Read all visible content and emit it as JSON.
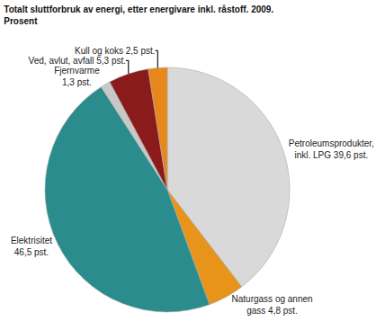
{
  "chart_data": {
    "type": "pie",
    "title": "Totalt sluttforbruk av energi, etter energivare inkl. råstoff. 2009.",
    "subtitle": "Prosent",
    "categories": [
      "Petroleumsprodukter,\ninkl. LPG 39,6 pst.",
      "Naturgass og annen\ngass 4,8 pst.",
      "Elektrisitet\n46,5 pst.",
      "Fjernvarme\n1,3 pst.",
      "Ved, avlut, avfall 5,3 pst.",
      "Kull og koks 2,5 pst."
    ],
    "values": [
      39.6,
      4.8,
      46.5,
      1.3,
      5.3,
      2.5
    ],
    "colors": [
      "#d9d9d9",
      "#e8941a",
      "#2a8c8c",
      "#c8c8c8",
      "#8b1a1a",
      "#e8881a"
    ]
  }
}
